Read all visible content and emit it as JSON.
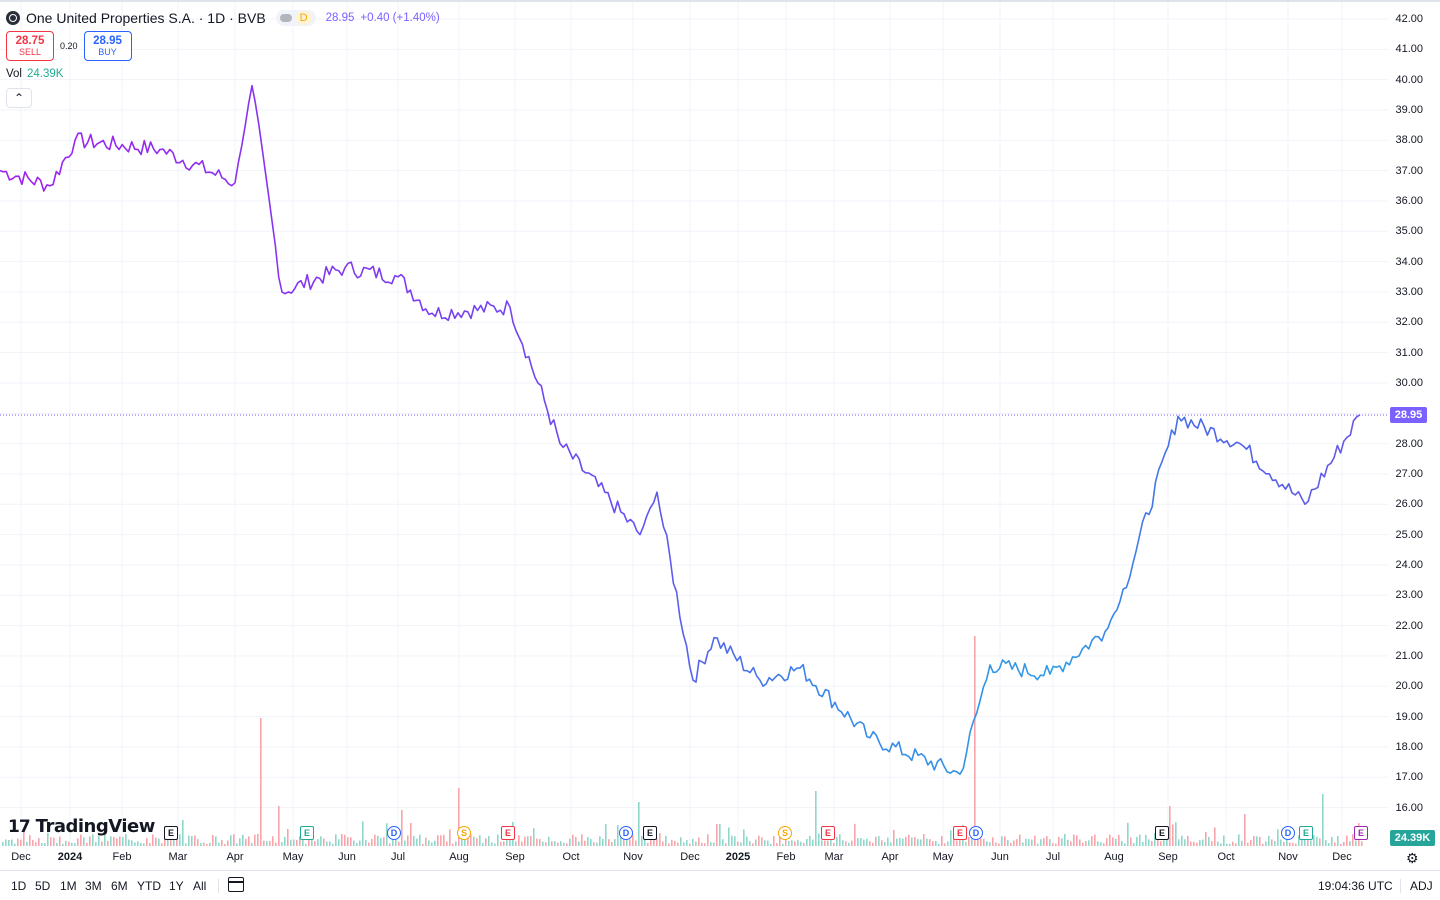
{
  "header": {
    "title": "One United Properties S.A. · 1D · BVB",
    "interval_badge": "D",
    "last_price": "28.95",
    "change": "+0.40 (+1.40%)"
  },
  "trade": {
    "sell_price": "28.75",
    "sell_label": "SELL",
    "spread": "0.20",
    "buy_price": "28.95",
    "buy_label": "BUY"
  },
  "volume": {
    "label": "Vol",
    "value": "24.39K"
  },
  "price_axis": [
    "42.00",
    "41.00",
    "40.00",
    "39.00",
    "38.00",
    "37.00",
    "36.00",
    "35.00",
    "34.00",
    "33.00",
    "32.00",
    "31.00",
    "30.00",
    "28.00",
    "27.00",
    "26.00",
    "25.00",
    "24.00",
    "23.00",
    "22.00",
    "21.00",
    "20.00",
    "19.00",
    "18.00",
    "17.00",
    "16.00"
  ],
  "current_price_badge": "28.95",
  "volume_badge": "24.39K",
  "time_axis": [
    "Dec",
    "2024",
    "Feb",
    "Mar",
    "Apr",
    "May",
    "Jun",
    "Jul",
    "Aug",
    "Sep",
    "Oct",
    "Nov",
    "Dec",
    "2025",
    "Feb",
    "Mar",
    "Apr",
    "May",
    "Jun",
    "Jul",
    "Aug",
    "Sep",
    "Oct",
    "Nov",
    "Dec"
  ],
  "brand": {
    "mark": "17",
    "name": "TradingView"
  },
  "event_markers": [
    "E",
    "E",
    "D",
    "S",
    "E",
    "E",
    "D",
    "E",
    "S",
    "E",
    "E",
    "D",
    "E",
    "D",
    "E"
  ],
  "bottom_bar": {
    "ranges": [
      "1D",
      "5D",
      "1M",
      "3M",
      "6M",
      "YTD",
      "1Y",
      "All"
    ],
    "clock": "19:04:36 UTC",
    "adj": "ADJ"
  },
  "colors": {
    "line_start": "#a020f0",
    "line_mid": "#5b5ce6",
    "line_end": "#1f9be8",
    "current_price": "#7b61ff",
    "volume_up": "#22ab94",
    "volume_down": "#f23645",
    "grid": "#f0f3fa"
  },
  "chart_data": {
    "type": "line",
    "title": "One United Properties S.A. · 1D · BVB",
    "ylim": [
      16,
      42
    ],
    "x": [
      "2023-12",
      "2024-01",
      "2024-02",
      "2024-03",
      "2024-04",
      "2024-04",
      "2024-05",
      "2024-06",
      "2024-07",
      "2024-08",
      "2024-09",
      "2024-10",
      "2024-11",
      "2024-11",
      "2024-12",
      "2025-01",
      "2025-02",
      "2025-03",
      "2025-04",
      "2025-05",
      "2025-05",
      "2025-06",
      "2025-07",
      "2025-08",
      "2025-09",
      "2025-10",
      "2025-11",
      "2025-12"
    ],
    "series": [
      {
        "values": [
          37.0,
          36.5,
          38.0,
          37.7,
          36.6,
          39.8,
          33.0,
          33.8,
          33.5,
          32.3,
          32.5,
          28.0,
          25.0,
          26.4,
          20.2,
          21.6,
          20.2,
          20.6,
          18.3,
          17.1,
          20.7,
          20.4,
          21.8,
          22.8,
          28.9,
          28.0,
          26.0,
          28.95
        ]
      }
    ],
    "volume_max": "~1.0 (relative)",
    "grid": true
  }
}
